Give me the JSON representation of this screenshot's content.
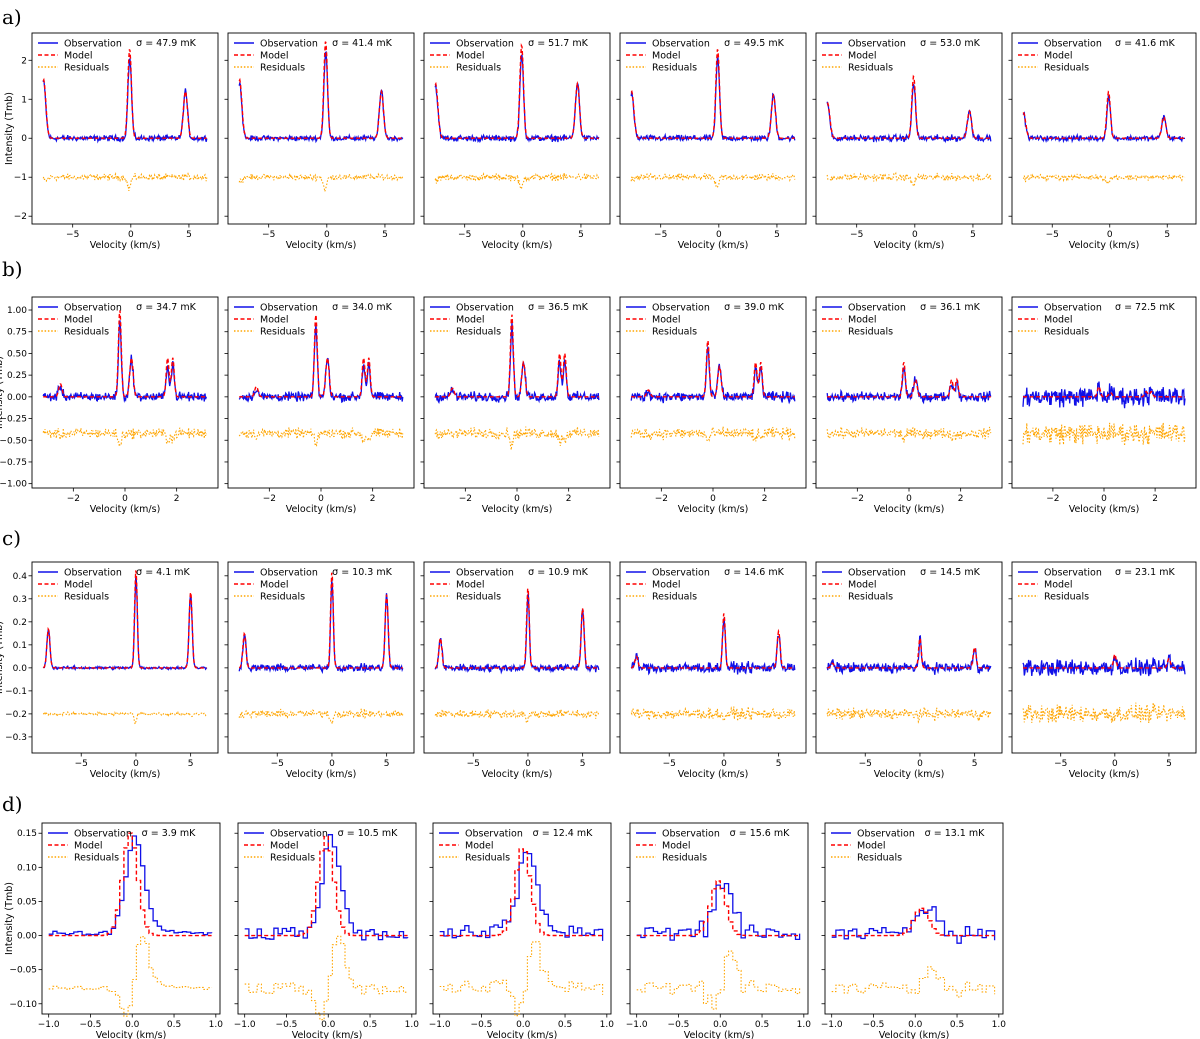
{
  "chart_data": [
    {
      "row": "a)",
      "type": "line",
      "xlabel": "Velocity (km/s)",
      "ylabel": "Intensity (Tmb)",
      "xlim": [
        -8.5,
        7.5
      ],
      "ylim": [
        -2.2,
        2.7
      ],
      "xticks": [
        -5,
        0,
        5
      ],
      "yticks": [
        -2,
        -1,
        0,
        1,
        2
      ],
      "residual_offset": -1.0,
      "line_centers": [
        -7.5,
        -0.1,
        4.7
      ],
      "line_widths": [
        0.35,
        0.28,
        0.32
      ],
      "series_names": [
        "Observation",
        "Model",
        "Residuals"
      ],
      "panels": [
        {
          "sigma": "σ = 47.9 mK",
          "peaks": [
            1.5,
            2.3,
            1.2
          ]
        },
        {
          "sigma": "σ = 41.4 mK",
          "peaks": [
            1.5,
            2.5,
            1.2
          ]
        },
        {
          "sigma": "σ = 51.7 mK",
          "peaks": [
            1.4,
            2.4,
            1.4
          ]
        },
        {
          "sigma": "σ = 49.5 mK",
          "peaks": [
            1.2,
            2.3,
            1.1
          ]
        },
        {
          "sigma": "σ = 53.0 mK",
          "peaks": [
            0.9,
            1.6,
            0.7
          ]
        },
        {
          "sigma": "σ = 41.6 mK",
          "peaks": [
            0.65,
            1.2,
            0.55
          ]
        }
      ]
    },
    {
      "row": "b)",
      "type": "line",
      "xlabel": "Velocity (km/s)",
      "ylabel": "Intensity (Tmb)",
      "xlim": [
        -3.6,
        3.6
      ],
      "ylim": [
        -1.05,
        1.15
      ],
      "xticks": [
        -2,
        0,
        2
      ],
      "yticks": [
        -1.0,
        -0.75,
        -0.5,
        -0.25,
        0.0,
        0.25,
        0.5,
        0.75,
        1.0
      ],
      "ytick_labels": [
        "−1.00",
        "−0.75",
        "−0.50",
        "−0.25",
        "0.00",
        "0.25",
        "0.50",
        "0.75",
        "1.00"
      ],
      "residual_offset": -0.42,
      "line_centers": [
        -2.5,
        -0.2,
        0.25,
        1.65,
        1.85
      ],
      "line_widths": [
        0.12,
        0.1,
        0.12,
        0.1,
        0.1
      ],
      "series_names": [
        "Observation",
        "Model",
        "Residuals"
      ],
      "panels": [
        {
          "sigma": "σ = 34.7 mK",
          "peaks": [
            0.15,
            1.0,
            0.45,
            0.45,
            0.45
          ]
        },
        {
          "sigma": "σ = 34.0 mK",
          "peaks": [
            0.12,
            0.95,
            0.45,
            0.45,
            0.45
          ]
        },
        {
          "sigma": "σ = 36.5 mK",
          "peaks": [
            0.1,
            0.95,
            0.4,
            0.5,
            0.5
          ]
        },
        {
          "sigma": "σ = 39.0 mK",
          "peaks": [
            0.08,
            0.65,
            0.35,
            0.4,
            0.4
          ]
        },
        {
          "sigma": "σ = 36.1 mK",
          "peaks": [
            0.0,
            0.4,
            0.2,
            0.2,
            0.2
          ]
        },
        {
          "sigma": "σ = 72.5 mK",
          "peaks": [
            0.0,
            0.12,
            0.05,
            0.06,
            0.06
          ]
        }
      ]
    },
    {
      "row": "c)",
      "type": "line",
      "xlabel": "Velocity (km/s)",
      "ylabel": "Intensity (Tmb)",
      "xlim": [
        -9.5,
        7.5
      ],
      "ylim": [
        -0.37,
        0.46
      ],
      "xticks": [
        -5,
        0,
        5
      ],
      "yticks": [
        -0.3,
        -0.2,
        -0.1,
        0.0,
        0.1,
        0.2,
        0.3,
        0.4
      ],
      "ytick_labels": [
        "−0.3",
        "−0.2",
        "−0.1",
        "0.0",
        "0.1",
        "0.2",
        "0.3",
        "0.4"
      ],
      "residual_offset": -0.2,
      "line_centers": [
        -8.0,
        0.0,
        5.0
      ],
      "line_widths": [
        0.25,
        0.22,
        0.25
      ],
      "series_names": [
        "Observation",
        "Model",
        "Residuals"
      ],
      "panels": [
        {
          "sigma": "σ = 4.1 mK",
          "peaks": [
            0.17,
            0.43,
            0.33
          ]
        },
        {
          "sigma": "σ = 10.3 mK",
          "peaks": [
            0.15,
            0.42,
            0.32
          ]
        },
        {
          "sigma": "σ = 10.9 mK",
          "peaks": [
            0.13,
            0.35,
            0.26
          ]
        },
        {
          "sigma": "σ = 14.6 mK",
          "peaks": [
            0.05,
            0.24,
            0.16
          ]
        },
        {
          "sigma": "σ = 14.5 mK",
          "peaks": [
            0.02,
            0.13,
            0.09
          ]
        },
        {
          "sigma": "σ = 23.1 mK",
          "peaks": [
            0.0,
            0.06,
            0.04
          ]
        }
      ]
    },
    {
      "row": "d)",
      "type": "line",
      "xlabel": "Velocity (km/s)",
      "ylabel": "Intensity (Tmb)",
      "xlim": [
        -1.08,
        1.05
      ],
      "ylim": [
        -0.115,
        0.165
      ],
      "xticks": [
        -1.0,
        -0.5,
        0.0,
        0.5,
        1.0
      ],
      "xtick_labels": [
        "−1.0",
        "−0.5",
        "0.0",
        "0.5",
        "1.0"
      ],
      "yticks": [
        -0.1,
        -0.05,
        0.0,
        0.05,
        0.1,
        0.15
      ],
      "ytick_labels": [
        "−0.10",
        "−0.05",
        "0.00",
        "0.05",
        "0.10",
        "0.15"
      ],
      "residual_offset": -0.08,
      "series_names": [
        "Observation",
        "Model",
        "Residuals"
      ],
      "panels": [
        {
          "sigma": "σ = 3.9 mK",
          "peak": 0.15,
          "center": -0.05
        },
        {
          "sigma": "σ = 10.5 mK",
          "peak": 0.145,
          "center": -0.05
        },
        {
          "sigma": "σ = 12.4 mK",
          "peak": 0.13,
          "center": -0.03
        },
        {
          "sigma": "σ = 15.6 mK",
          "peak": 0.08,
          "center": -0.05
        },
        {
          "sigma": "σ = 13.1 mK",
          "peak": 0.04,
          "center": 0.05
        }
      ]
    }
  ],
  "colors": {
    "observation": "#1010e8",
    "model": "#ff0000",
    "residuals": "#ffa500"
  }
}
